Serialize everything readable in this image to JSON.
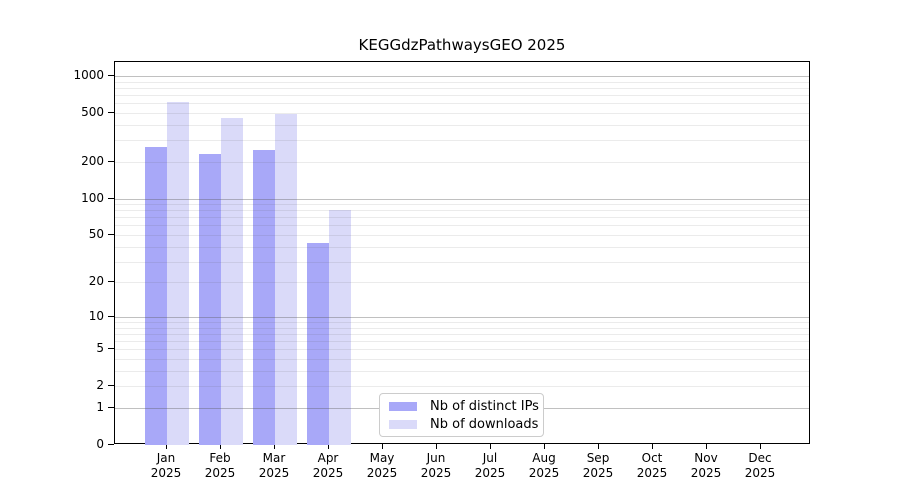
{
  "title": "KEGGdzPathwaysGEO 2025",
  "colors": {
    "bar_ips": "#a8a8f8",
    "bar_downloads": "#dadaf9",
    "grid_major": "#c2c2c2",
    "grid_minor": "#ebebeb",
    "axis": "#000000",
    "background": "#ffffff"
  },
  "legend": {
    "items": [
      {
        "label": "Nb of distinct IPs",
        "color": "#a8a8f8"
      },
      {
        "label": "Nb of downloads",
        "color": "#dadaf9"
      }
    ]
  },
  "chart_data": {
    "type": "bar",
    "title": "KEGGdzPathwaysGEO 2025",
    "categories": [
      "Jan 2025",
      "Feb 2025",
      "Mar 2025",
      "Apr 2025",
      "May 2025",
      "Jun 2025",
      "Jul 2025",
      "Aug 2025",
      "Sep 2025",
      "Oct 2025",
      "Nov 2025",
      "Dec 2025"
    ],
    "series": [
      {
        "name": "Nb of distinct IPs",
        "color": "#a8a8f8",
        "values": [
          265,
          230,
          250,
          43,
          null,
          null,
          null,
          null,
          null,
          null,
          null,
          null
        ]
      },
      {
        "name": "Nb of downloads",
        "color": "#dadaf9",
        "values": [
          610,
          455,
          490,
          80,
          null,
          null,
          null,
          null,
          null,
          null,
          null,
          null
        ]
      }
    ],
    "yscale": "log1p",
    "ylim": [
      0,
      1300
    ],
    "yticks": [
      0,
      1,
      2,
      5,
      10,
      20,
      50,
      100,
      200,
      500,
      1000
    ],
    "grid_major": [
      1,
      10,
      100,
      1000
    ],
    "grid_minor": [
      2,
      3,
      4,
      5,
      6,
      7,
      8,
      9,
      20,
      30,
      40,
      50,
      60,
      70,
      80,
      90,
      200,
      300,
      400,
      500,
      600,
      700,
      800,
      900
    ],
    "grid": "horizontal",
    "legend_position": "lower-center",
    "xlabel": "",
    "ylabel": ""
  }
}
